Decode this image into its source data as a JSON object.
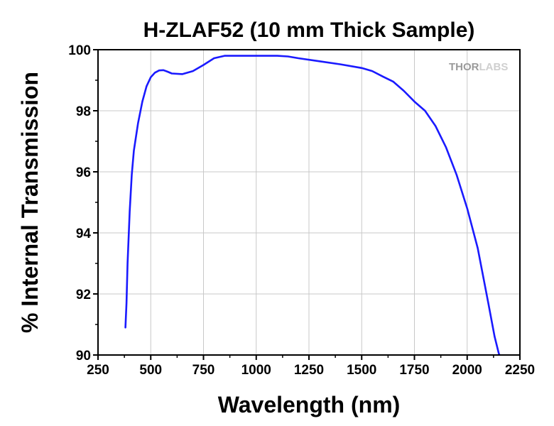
{
  "chart_data": {
    "type": "line",
    "title": "H-ZLAF52 (10 mm Thick Sample)",
    "xlabel": "Wavelength (nm)",
    "ylabel": "% Internal Transmission",
    "xlim": [
      250,
      2250
    ],
    "ylim": [
      90,
      100
    ],
    "x_ticks": [
      "250",
      "500",
      "750",
      "1000",
      "1250",
      "1500",
      "1750",
      "2000",
      "2250"
    ],
    "y_ticks": [
      "90",
      "92",
      "94",
      "96",
      "98",
      "100"
    ],
    "grid": true,
    "line_color": "#1a1aff",
    "watermark": "THORLABS",
    "series": [
      {
        "x": [
          380,
          385,
          390,
          400,
          410,
          420,
          440,
          460,
          480,
          500,
          520,
          540,
          560,
          580,
          600,
          650,
          700,
          750,
          800,
          850,
          900,
          1000,
          1100,
          1150,
          1200,
          1300,
          1400,
          1500,
          1550,
          1600,
          1650,
          1700,
          1750,
          1800,
          1850,
          1900,
          1950,
          2000,
          2050,
          2100,
          2130,
          2150,
          2160
        ],
        "y": [
          90.9,
          91.7,
          93.0,
          94.7,
          95.9,
          96.7,
          97.6,
          98.3,
          98.8,
          99.1,
          99.25,
          99.32,
          99.33,
          99.28,
          99.22,
          99.2,
          99.3,
          99.5,
          99.72,
          99.8,
          99.8,
          99.8,
          99.8,
          99.78,
          99.72,
          99.62,
          99.52,
          99.4,
          99.3,
          99.12,
          98.95,
          98.65,
          98.3,
          98.0,
          97.5,
          96.8,
          95.9,
          94.8,
          93.5,
          91.7,
          90.6,
          90.05,
          89.9
        ]
      }
    ]
  }
}
